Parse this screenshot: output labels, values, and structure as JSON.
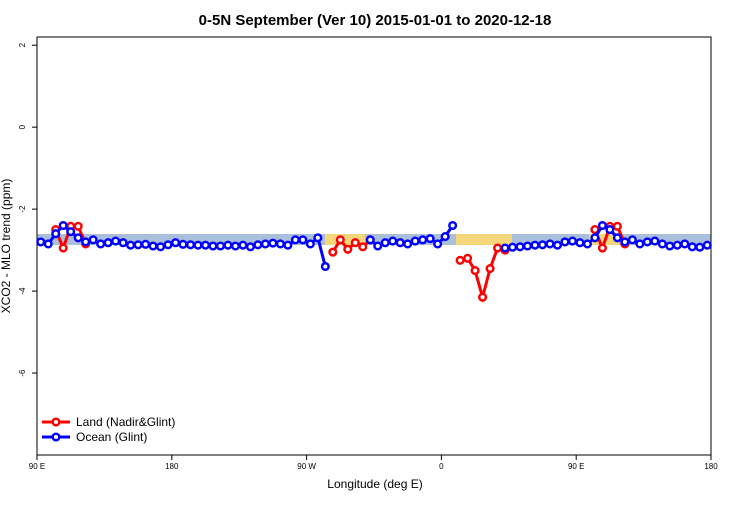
{
  "chart_data": {
    "type": "line",
    "title": "0-5N September (Ver 10)   2015-01-01 to 2020-12-18",
    "x_label": "Longitude (deg E)",
    "y_label": "XCO2 - MLO trend (ppm)",
    "x": [
      92.5,
      97.5,
      102.5,
      107.5,
      112.5,
      117.5,
      122.5,
      127.5,
      132.5,
      137.5,
      142.5,
      147.5,
      152.5,
      157.5,
      162.5,
      167.5,
      172.5,
      177.5,
      182.5,
      187.5,
      192.5,
      197.5,
      202.5,
      207.5,
      212.5,
      217.5,
      222.5,
      227.5,
      232.5,
      237.5,
      242.5,
      247.5,
      252.5,
      257.5,
      262.5,
      267.5,
      272.5,
      277.5,
      282.5,
      287.5,
      292.5,
      297.5,
      302.5,
      307.5,
      312.5,
      317.5,
      322.5,
      327.5,
      332.5,
      337.5,
      342.5,
      347.5,
      352.5,
      357.5,
      362.5,
      367.5,
      372.5,
      377.5,
      382.5,
      387.5,
      392.5,
      397.5,
      402.5,
      407.5,
      412.5,
      417.5,
      422.5,
      427.5,
      432.5,
      437.5,
      442.5,
      447.5,
      452.5,
      457.5,
      462.5,
      467.5,
      472.5,
      477.5,
      482.5,
      487.5,
      492.5,
      497.5,
      502.5,
      507.5,
      512.5,
      517.5,
      522.5,
      527.5,
      532.5,
      537.5
    ],
    "series": [
      {
        "name": "Land (Nadir&Glint)",
        "color": "#ff0000",
        "values": [
          null,
          null,
          -2.5,
          -2.95,
          -2.42,
          -2.42,
          -2.85,
          null,
          null,
          null,
          null,
          null,
          null,
          null,
          null,
          null,
          null,
          null,
          null,
          null,
          null,
          null,
          null,
          null,
          null,
          null,
          null,
          null,
          null,
          null,
          null,
          null,
          null,
          null,
          null,
          null,
          null,
          null,
          null,
          -3.05,
          -2.75,
          -2.98,
          -2.82,
          -2.92,
          -2.75,
          null,
          null,
          null,
          null,
          null,
          null,
          null,
          null,
          null,
          null,
          null,
          -3.25,
          -3.2,
          -3.5,
          -4.15,
          -3.45,
          -2.95,
          -3.0,
          null,
          null,
          null,
          null,
          null,
          null,
          null,
          null,
          null,
          null,
          null,
          -2.5,
          -2.95,
          -2.42,
          -2.42,
          -2.85,
          null,
          null,
          null,
          null,
          null,
          null,
          null,
          null,
          null,
          null,
          null
        ]
      },
      {
        "name": "Ocean (Glint)",
        "color": "#0000ff",
        "values": [
          -2.8,
          -2.85,
          -2.6,
          -2.4,
          -2.55,
          -2.7,
          -2.8,
          -2.75,
          -2.85,
          -2.82,
          -2.78,
          -2.82,
          -2.88,
          -2.87,
          -2.86,
          -2.9,
          -2.92,
          -2.87,
          -2.82,
          -2.86,
          -2.87,
          -2.88,
          -2.88,
          -2.9,
          -2.9,
          -2.88,
          -2.9,
          -2.88,
          -2.92,
          -2.87,
          -2.85,
          -2.83,
          -2.85,
          -2.88,
          -2.75,
          -2.75,
          -2.85,
          -2.7,
          -3.4,
          null,
          null,
          null,
          null,
          null,
          -2.75,
          -2.9,
          -2.82,
          -2.78,
          -2.82,
          -2.85,
          -2.78,
          -2.75,
          -2.72,
          -2.85,
          -2.67,
          -2.4,
          null,
          null,
          null,
          null,
          null,
          null,
          -2.95,
          -2.93,
          -2.92,
          -2.9,
          -2.88,
          -2.87,
          -2.85,
          -2.88,
          -2.8,
          -2.78,
          -2.82,
          -2.85,
          -2.7,
          -2.4,
          -2.5,
          -2.7,
          -2.8,
          -2.75,
          -2.85,
          -2.8,
          -2.78,
          -2.85,
          -2.9,
          -2.88,
          -2.85,
          -2.92,
          -2.93,
          -2.88
        ]
      }
    ],
    "xlim": [
      90,
      540
    ],
    "xticks": [
      {
        "value": 90,
        "label": "90 E"
      },
      180,
      {
        "value": 270,
        "label": "90 W"
      },
      {
        "value": 360,
        "label": "0"
      },
      {
        "value": 450,
        "label": "90 E"
      },
      {
        "value": 540,
        "label": "180"
      }
    ],
    "ylim": [
      -8,
      2.2
    ],
    "yticks": [
      2,
      0,
      -2,
      -4,
      -6
    ],
    "legend": "bottom-left"
  }
}
